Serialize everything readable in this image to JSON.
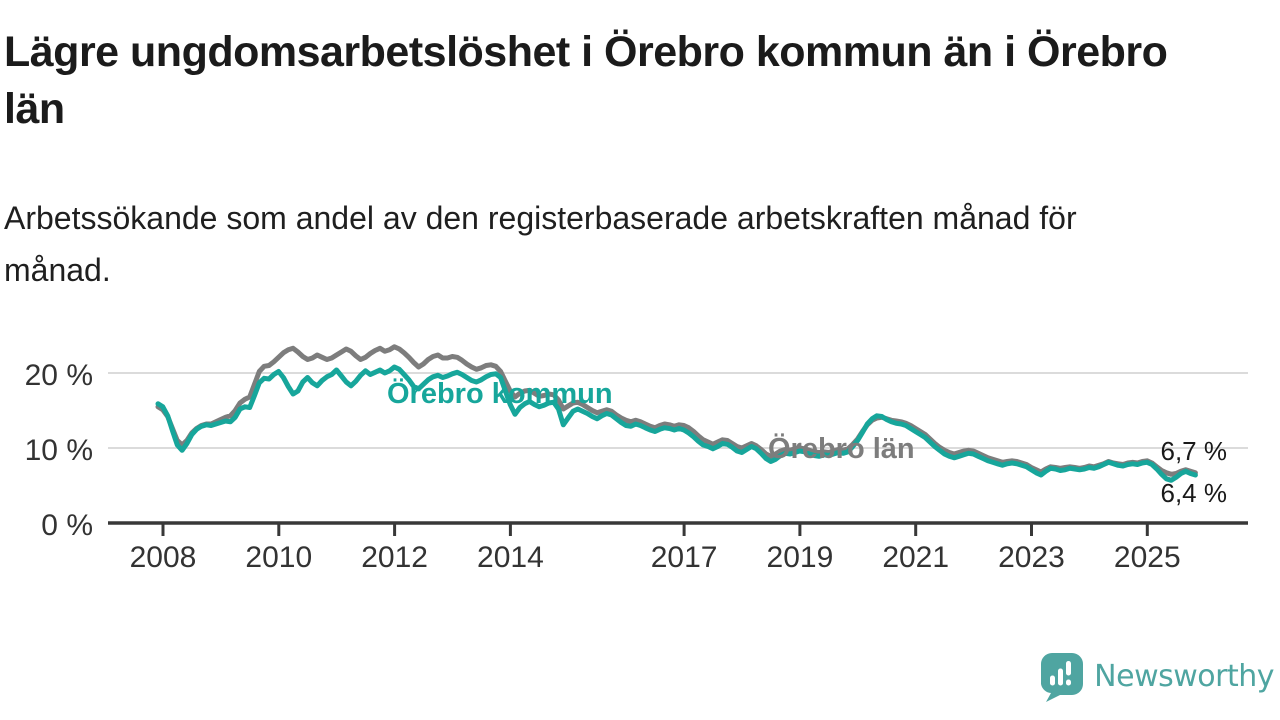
{
  "chart_data": {
    "type": "line",
    "title_lines": [
      "Lägre ungdomsarbetslöshet i Örebro kommun än i Örebro",
      "län"
    ],
    "subtitle_lines": [
      "Arbetssökande som andel av den registerbaserade arbetskraften månad för",
      "månad."
    ],
    "x_unit": "month",
    "x_start": "2008-01",
    "x_end": "2025-12",
    "ylim": [
      0,
      26
    ],
    "grid": "horizontal",
    "legend_position": "inline-labels",
    "colors": {
      "grid": "#dbdbdb",
      "axis": "#383838",
      "tick_label": "#333333",
      "end_label": "#1a1a1a"
    },
    "y_ticks": [
      {
        "value": 0,
        "label": "0 %"
      },
      {
        "value": 10,
        "label": "10 %"
      },
      {
        "value": 20,
        "label": "20 %"
      }
    ],
    "x_ticks": [
      {
        "year": 2008,
        "label": "2008"
      },
      {
        "year": 2010,
        "label": "2010"
      },
      {
        "year": 2012,
        "label": "2012"
      },
      {
        "year": 2014,
        "label": "2014"
      },
      {
        "year": 2017,
        "label": "2017"
      },
      {
        "year": 2019,
        "label": "2019"
      },
      {
        "year": 2021,
        "label": "2021"
      },
      {
        "year": 2023,
        "label": "2023"
      },
      {
        "year": 2025,
        "label": "2025"
      }
    ],
    "series": [
      {
        "name": "Örebro län",
        "color": "#7d7d7d",
        "end_label": "6,7 %",
        "end_value": 6.7,
        "values": [
          15.5,
          15.1,
          14.2,
          12.6,
          11.0,
          10.4,
          11.0,
          12.0,
          12.6,
          13.0,
          13.2,
          13.2,
          13.5,
          13.8,
          14.1,
          14.3,
          15.0,
          16.0,
          16.5,
          16.8,
          18.5,
          20.2,
          20.9,
          21.0,
          21.5,
          22.1,
          22.7,
          23.1,
          23.3,
          22.8,
          22.2,
          21.8,
          22.0,
          22.4,
          22.1,
          21.8,
          22.0,
          22.4,
          22.8,
          23.2,
          22.9,
          22.3,
          21.8,
          22.1,
          22.6,
          23.0,
          23.3,
          22.9,
          23.1,
          23.5,
          23.2,
          22.7,
          22.1,
          21.4,
          20.8,
          21.2,
          21.8,
          22.2,
          22.4,
          22.0,
          22.0,
          22.2,
          22.1,
          21.7,
          21.2,
          20.8,
          20.5,
          20.7,
          21.0,
          21.1,
          20.9,
          20.2,
          18.9,
          17.6,
          16.8,
          17.3,
          17.6,
          17.7,
          17.3,
          16.9,
          17.0,
          17.2,
          17.1,
          16.4,
          15.2,
          15.6,
          16.0,
          16.1,
          15.8,
          15.4,
          15.0,
          14.7,
          14.9,
          15.1,
          14.9,
          14.4,
          14.0,
          13.7,
          13.5,
          13.7,
          13.5,
          13.2,
          12.9,
          12.7,
          13.0,
          13.2,
          13.1,
          12.9,
          13.1,
          13.0,
          12.7,
          12.2,
          11.6,
          11.1,
          10.8,
          10.5,
          10.8,
          11.1,
          11.0,
          10.6,
          10.2,
          10.0,
          10.3,
          10.6,
          10.3,
          9.8,
          9.2,
          8.9,
          9.2,
          9.6,
          9.8,
          9.7,
          9.9,
          10.0,
          9.9,
          9.7,
          9.5,
          9.4,
          9.5,
          9.4,
          9.6,
          9.8,
          9.7,
          9.9,
          10.5,
          11.2,
          12.2,
          13.1,
          13.7,
          14.0,
          14.1,
          13.9,
          13.7,
          13.6,
          13.5,
          13.3,
          13.0,
          12.6,
          12.2,
          11.8,
          11.2,
          10.6,
          10.1,
          9.7,
          9.4,
          9.2,
          9.4,
          9.6,
          9.7,
          9.6,
          9.3,
          9.0,
          8.7,
          8.5,
          8.3,
          8.1,
          8.2,
          8.3,
          8.2,
          8.0,
          7.8,
          7.4,
          7.1,
          6.8,
          7.2,
          7.5,
          7.4,
          7.3,
          7.4,
          7.5,
          7.4,
          7.3,
          7.4,
          7.6,
          7.5,
          7.7,
          7.9,
          8.2,
          8.0,
          7.9,
          7.8,
          8.0,
          8.1,
          8.0,
          8.2,
          8.3,
          8.0,
          7.5,
          7.0,
          6.7,
          6.5,
          6.6,
          6.9,
          7.1,
          6.9,
          6.7
        ]
      },
      {
        "name": "Örebro kommun",
        "color": "#17a69b",
        "end_label": "6,4 %",
        "end_value": 6.4,
        "values": [
          15.9,
          15.5,
          14.3,
          12.3,
          10.4,
          9.7,
          10.6,
          11.8,
          12.5,
          12.9,
          13.1,
          13.0,
          13.2,
          13.4,
          13.6,
          13.5,
          14.1,
          15.2,
          15.5,
          15.4,
          17.0,
          18.7,
          19.3,
          19.2,
          19.8,
          20.2,
          19.4,
          18.2,
          17.2,
          17.6,
          18.8,
          19.4,
          18.7,
          18.3,
          19.0,
          19.5,
          19.8,
          20.4,
          19.6,
          18.8,
          18.3,
          18.9,
          19.7,
          20.3,
          19.8,
          20.1,
          20.4,
          20.0,
          20.3,
          20.8,
          20.5,
          19.8,
          19.1,
          18.2,
          17.9,
          18.5,
          19.1,
          19.5,
          19.7,
          19.4,
          19.6,
          19.9,
          20.1,
          19.8,
          19.4,
          19.0,
          18.8,
          19.1,
          19.5,
          19.8,
          19.9,
          19.4,
          17.6,
          15.8,
          14.5,
          15.4,
          15.9,
          16.2,
          15.8,
          15.5,
          15.7,
          16.0,
          16.1,
          15.2,
          13.1,
          14.0,
          14.9,
          15.2,
          14.9,
          14.6,
          14.2,
          13.9,
          14.3,
          14.6,
          14.4,
          13.9,
          13.4,
          13.0,
          12.9,
          13.2,
          13.0,
          12.7,
          12.4,
          12.2,
          12.5,
          12.7,
          12.6,
          12.4,
          12.6,
          12.4,
          12.0,
          11.5,
          10.9,
          10.4,
          10.2,
          9.9,
          10.2,
          10.6,
          10.5,
          10.1,
          9.6,
          9.4,
          9.8,
          10.2,
          9.9,
          9.3,
          8.6,
          8.2,
          8.5,
          9.0,
          9.3,
          9.2,
          9.4,
          9.6,
          9.5,
          9.2,
          9.0,
          8.9,
          9.1,
          9.0,
          9.2,
          9.4,
          9.3,
          9.5,
          10.2,
          11.0,
          12.1,
          13.2,
          13.9,
          14.3,
          14.2,
          13.8,
          13.5,
          13.3,
          13.2,
          13.0,
          12.6,
          12.2,
          11.8,
          11.4,
          10.8,
          10.2,
          9.7,
          9.2,
          8.9,
          8.7,
          8.9,
          9.1,
          9.3,
          9.2,
          8.9,
          8.6,
          8.3,
          8.1,
          7.9,
          7.7,
          7.9,
          8.0,
          7.9,
          7.7,
          7.5,
          7.1,
          6.7,
          6.4,
          6.9,
          7.3,
          7.2,
          7.0,
          7.1,
          7.3,
          7.2,
          7.1,
          7.2,
          7.4,
          7.3,
          7.5,
          7.8,
          8.1,
          7.9,
          7.7,
          7.6,
          7.8,
          7.9,
          7.8,
          8.0,
          8.1,
          7.8,
          7.2,
          6.5,
          5.9,
          5.7,
          6.1,
          6.6,
          6.9,
          6.6,
          6.4
        ]
      }
    ]
  },
  "footer": {
    "brand": "Newsworthy",
    "brand_color": "#4fa5a1",
    "logo_icon": "newsworthy-speech-bubble-bar-chart"
  }
}
